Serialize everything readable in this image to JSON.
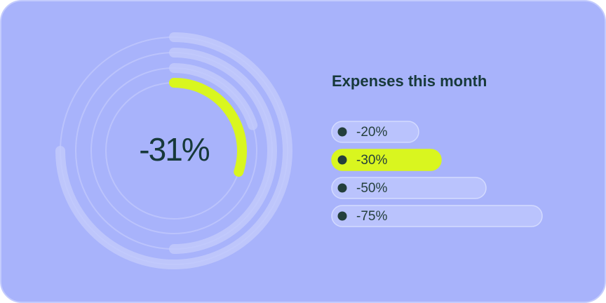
{
  "chart_data": {
    "type": "radial-bar",
    "title": "Expenses this month",
    "center_label": "-31%",
    "categories": [
      "-20%",
      "-30%",
      "-50%",
      "-75%"
    ],
    "values": [
      -20,
      -30,
      -50,
      -75
    ],
    "colors": [
      "#c3cbfb",
      "#d9f61f",
      "#c3cbfb",
      "#c3cbfb"
    ]
  }
}
